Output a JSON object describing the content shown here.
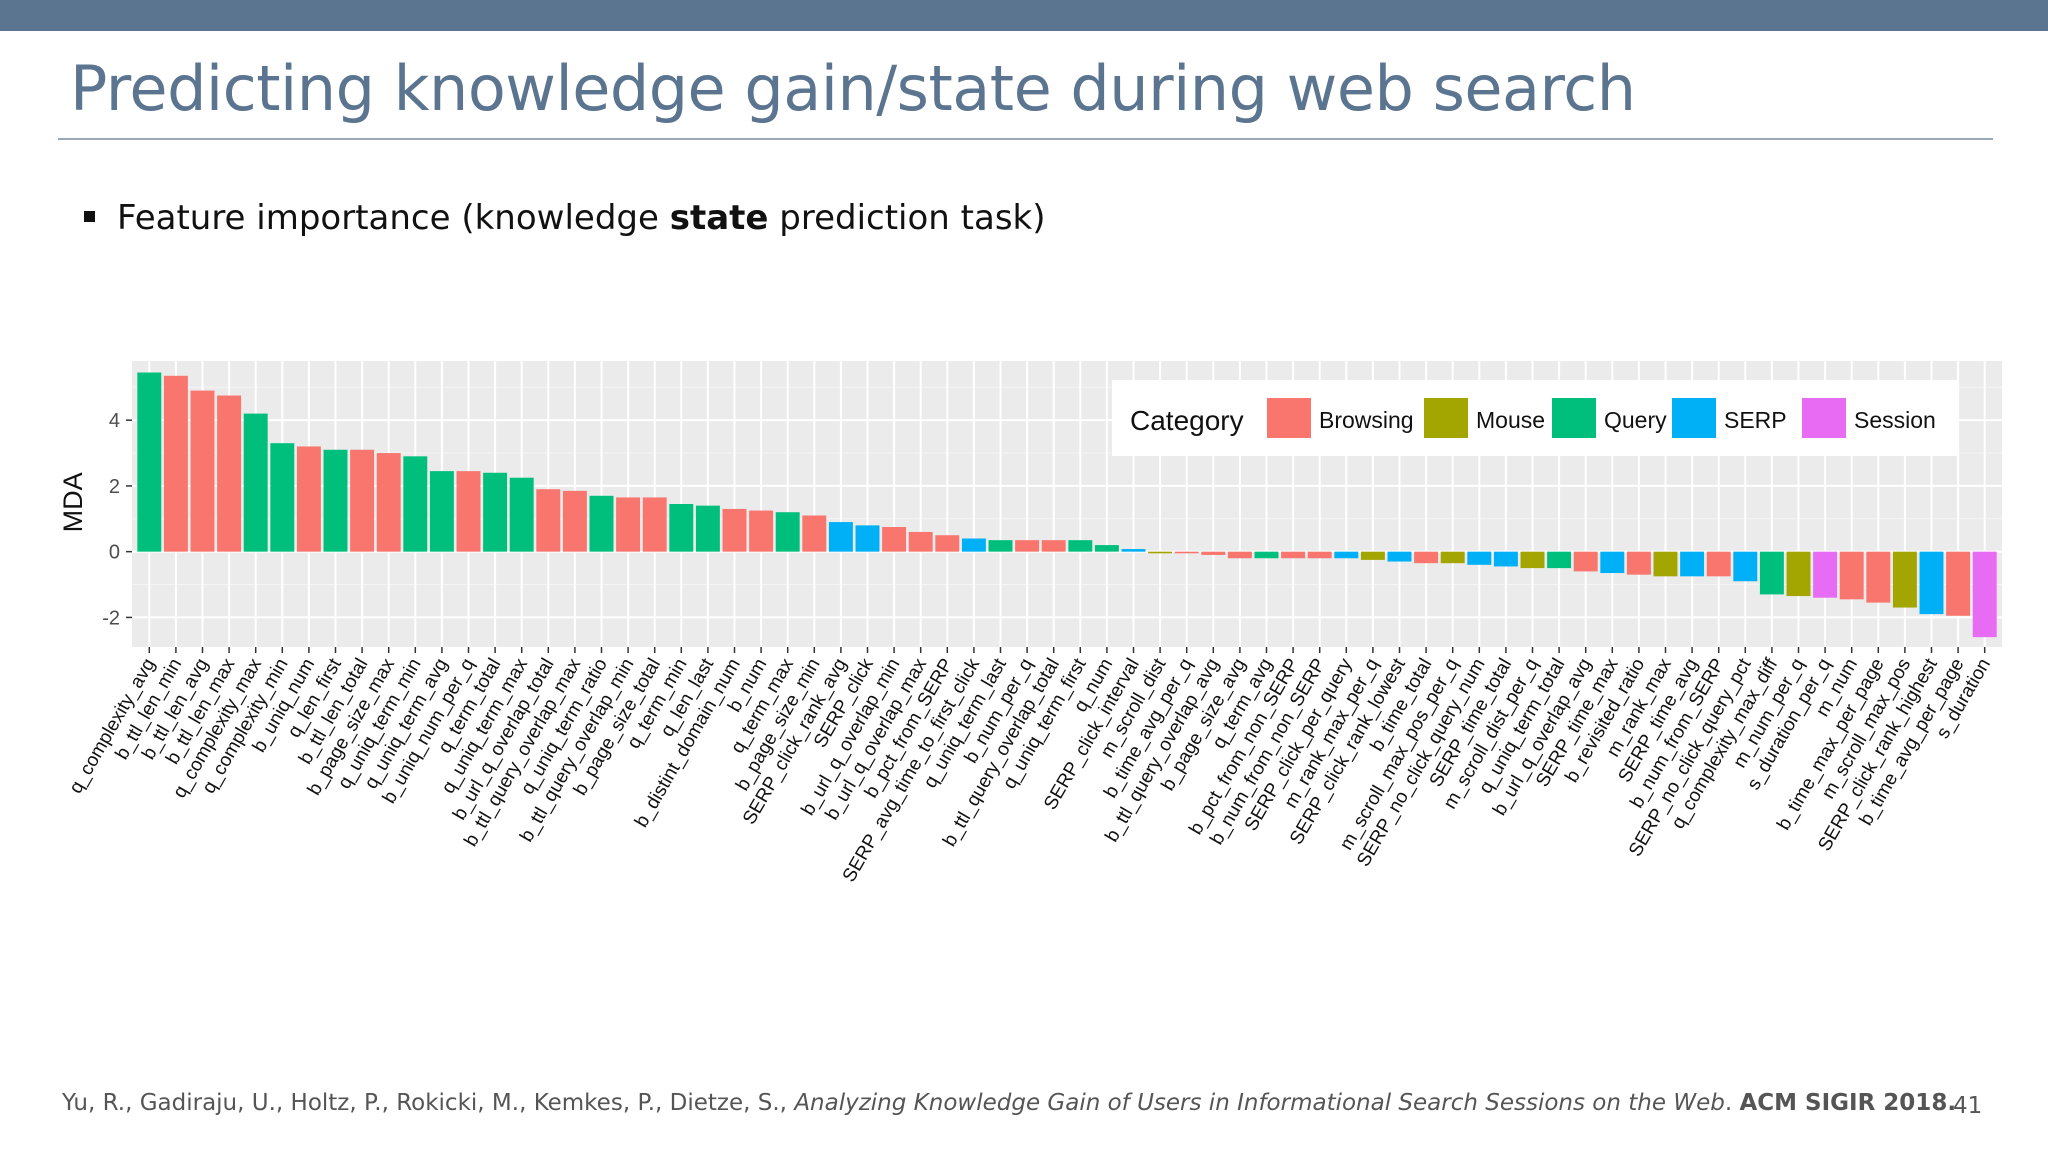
{
  "slide": {
    "title": "Predicting knowledge gain/state during web search",
    "bullet_pre": "Feature importance (knowledge ",
    "bullet_bold": "state",
    "bullet_post": " prediction task)",
    "footer_authors": "Yu, R., Gadiraju, U., Holtz, P., Rokicki, M., Kemkes, P., Dietze, S., ",
    "footer_title": "Analyzing Knowledge Gain of Users in Informational Search Sessions on the Web",
    "footer_sep": ". ",
    "footer_venue": "ACM SIGIR 2018.",
    "page_number": "41"
  },
  "colors": {
    "topbar": "#5b7490",
    "title": "#5b7490",
    "panel": "#ebebeb",
    "grid": "#ffffff"
  },
  "chart_data": {
    "type": "bar",
    "title": "",
    "xlabel": "",
    "ylabel": "MDA",
    "ylim": [
      -2.9,
      5.8
    ],
    "yticks": [
      -2,
      0,
      2,
      4
    ],
    "grid": true,
    "legend_position": "top-right",
    "legend_title": "Category",
    "category_colors": {
      "Browsing": "#f8766d",
      "Mouse": "#a3a500",
      "Query": "#00bf7d",
      "SERP": "#00b0f6",
      "Session": "#e76bf3"
    },
    "category_order": [
      "Browsing",
      "Mouse",
      "Query",
      "SERP",
      "Session"
    ],
    "categories": [
      "q_complexity_avg",
      "b_ttl_len_min",
      "b_ttl_len_avg",
      "b_ttl_len_max",
      "q_complexity_max",
      "q_complexity_min",
      "b_uniq_num",
      "q_len_first",
      "b_ttl_len_total",
      "b_page_size_max",
      "q_uniq_term_min",
      "q_uniq_term_avg",
      "b_uniq_num_per_q",
      "q_term_total",
      "q_uniq_term_max",
      "b_url_q_overlap_total",
      "b_ttl_query_overlap_max",
      "q_uniq_term_ratio",
      "b_ttl_query_overlap_min",
      "b_page_size_total",
      "q_term_min",
      "q_len_last",
      "b_distint_domain_num",
      "b_num",
      "q_term_max",
      "b_page_size_min",
      "SERP_click_rank_avg",
      "SERP_click",
      "b_url_q_overlap_min",
      "b_url_q_overlap_max",
      "b_pct_from_SERP",
      "SERP_avg_time_to_first_click",
      "q_uniq_term_last",
      "b_num_per_q",
      "b_ttl_query_overlap_total",
      "q_uniq_term_first",
      "q_num",
      "SERP_click_interval",
      "m_scroll_dist",
      "b_time_avg_per_q",
      "b_ttl_query_overlap_avg",
      "b_page_size_avg",
      "q_term_avg",
      "b_pct_from_non_SERP",
      "b_num_from_non_SERP",
      "SERP_click_per_query",
      "m_rank_max_per_q",
      "SERP_click_rank_lowest",
      "b_time_total",
      "m_scroll_max_pos_per_q",
      "SERP_no_click_query_num",
      "SERP_time_total",
      "m_scroll_dist_per_q",
      "q_uniq_term_total",
      "b_url_q_overlap_avg",
      "SERP_time_max",
      "b_revisited_ratio",
      "m_rank_max",
      "SERP_time_avg",
      "b_num_from_SERP",
      "SERP_no_click_query_pct",
      "q_complexity_max_diff",
      "m_num_per_q",
      "s_duration_per_q",
      "m_num",
      "b_time_max_per_page",
      "m_scroll_max_pos",
      "SERP_click_rank_highest",
      "b_time_avg_per_page",
      "s_duration"
    ],
    "series_category": [
      "Query",
      "Browsing",
      "Browsing",
      "Browsing",
      "Query",
      "Query",
      "Browsing",
      "Query",
      "Browsing",
      "Browsing",
      "Query",
      "Query",
      "Browsing",
      "Query",
      "Query",
      "Browsing",
      "Browsing",
      "Query",
      "Browsing",
      "Browsing",
      "Query",
      "Query",
      "Browsing",
      "Browsing",
      "Query",
      "Browsing",
      "SERP",
      "SERP",
      "Browsing",
      "Browsing",
      "Browsing",
      "SERP",
      "Query",
      "Browsing",
      "Browsing",
      "Query",
      "Query",
      "SERP",
      "Mouse",
      "Browsing",
      "Browsing",
      "Browsing",
      "Query",
      "Browsing",
      "Browsing",
      "SERP",
      "Mouse",
      "SERP",
      "Browsing",
      "Mouse",
      "SERP",
      "SERP",
      "Mouse",
      "Query",
      "Browsing",
      "SERP",
      "Browsing",
      "Mouse",
      "SERP",
      "Browsing",
      "SERP",
      "Query",
      "Mouse",
      "Session",
      "Browsing",
      "Browsing",
      "Mouse",
      "SERP",
      "Browsing",
      "Session"
    ],
    "values": [
      5.45,
      5.35,
      4.9,
      4.75,
      4.2,
      3.3,
      3.2,
      3.1,
      3.1,
      3.0,
      2.9,
      2.45,
      2.45,
      2.4,
      2.25,
      1.9,
      1.85,
      1.7,
      1.65,
      1.65,
      1.45,
      1.4,
      1.3,
      1.25,
      1.2,
      1.1,
      0.9,
      0.8,
      0.75,
      0.6,
      0.5,
      0.4,
      0.35,
      0.35,
      0.35,
      0.35,
      0.2,
      0.08,
      -0.05,
      -0.05,
      -0.1,
      -0.2,
      -0.2,
      -0.2,
      -0.2,
      -0.2,
      -0.25,
      -0.3,
      -0.35,
      -0.35,
      -0.4,
      -0.45,
      -0.5,
      -0.5,
      -0.6,
      -0.65,
      -0.7,
      -0.75,
      -0.75,
      -0.75,
      -0.9,
      -1.3,
      -1.35,
      -1.4,
      -1.45,
      -1.55,
      -1.7,
      -1.9,
      -1.95,
      -2.6
    ]
  }
}
